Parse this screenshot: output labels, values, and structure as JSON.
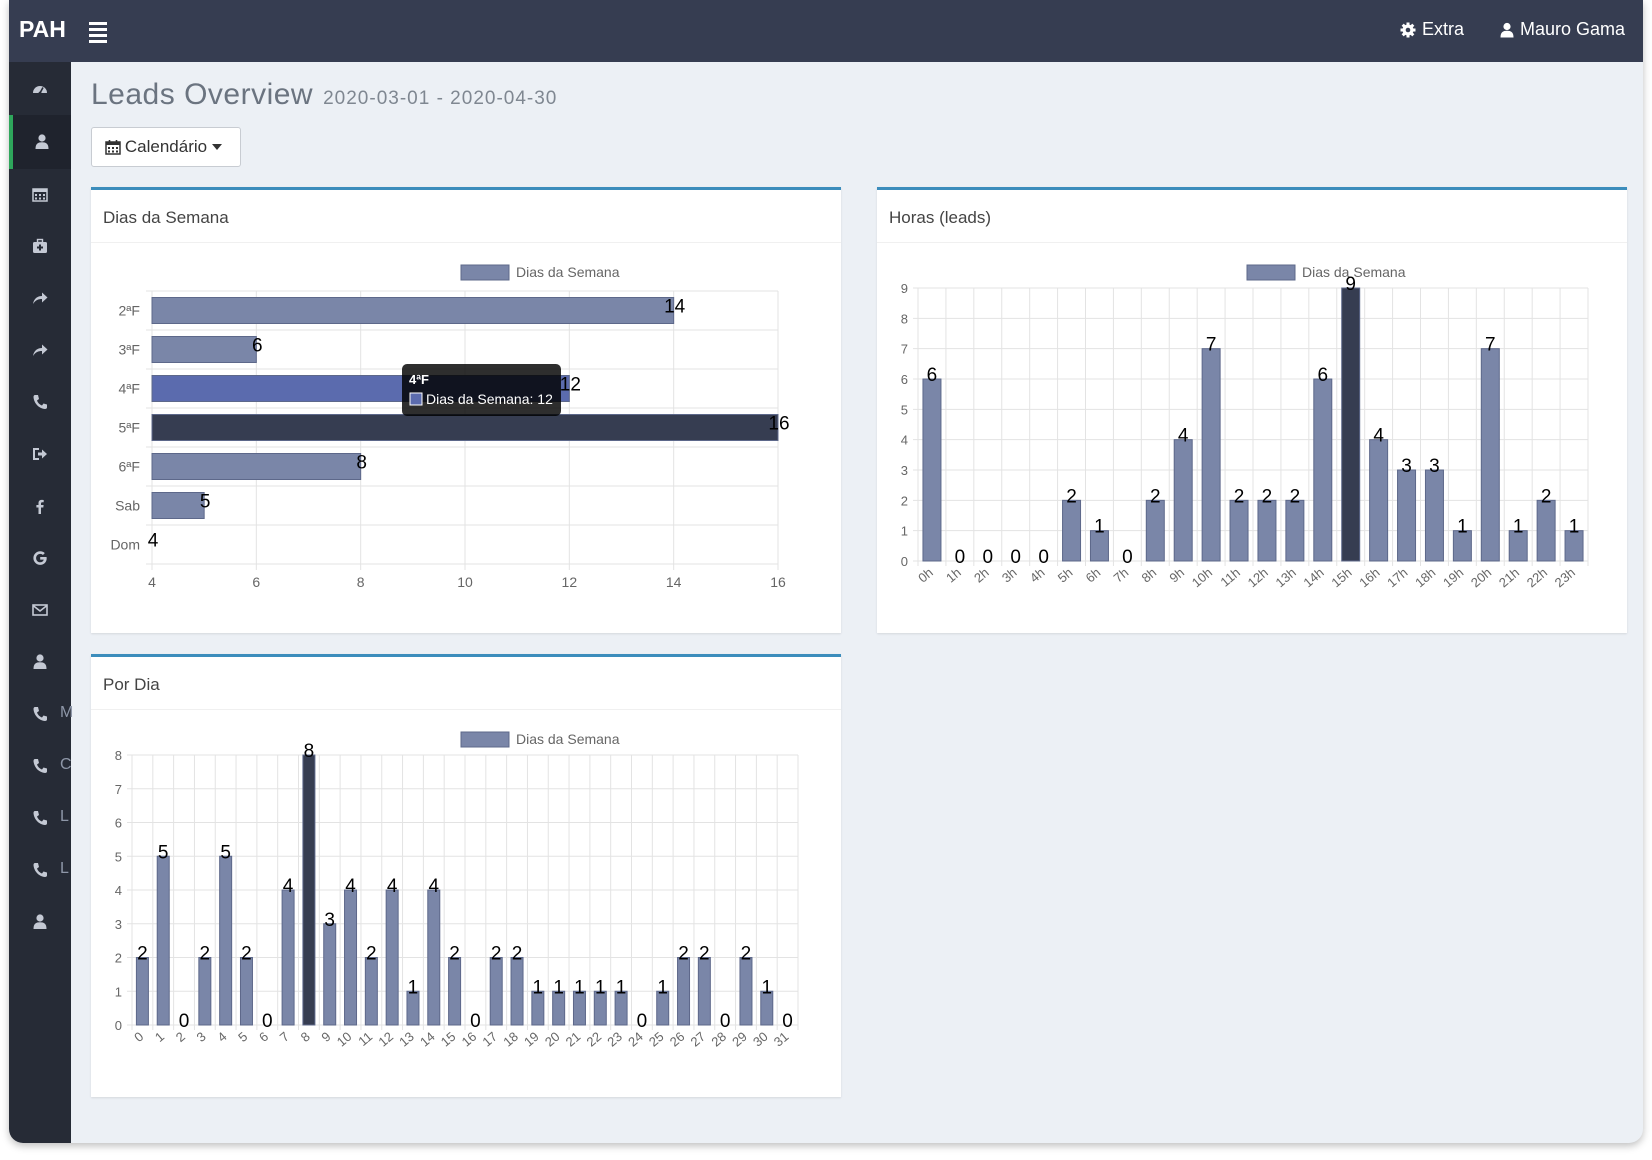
{
  "app": {
    "logo": "PAH"
  },
  "topbar": {
    "extra_label": "Extra",
    "user_name": "Mauro Gama"
  },
  "sidebar": {
    "items": [
      {
        "icon": "dashboard-icon",
        "label": ""
      },
      {
        "icon": "user-icon",
        "label": "",
        "active": true
      },
      {
        "icon": "calendar-icon",
        "label": ""
      },
      {
        "icon": "medkit-icon",
        "label": ""
      },
      {
        "icon": "share-icon",
        "label": ""
      },
      {
        "icon": "share-icon",
        "label": ""
      },
      {
        "icon": "phone-icon",
        "label": ""
      },
      {
        "icon": "sign-out-icon",
        "label": ""
      },
      {
        "icon": "facebook-icon",
        "label": ""
      },
      {
        "icon": "google-icon",
        "label": ""
      },
      {
        "icon": "envelope-icon",
        "label": ""
      },
      {
        "icon": "user-icon",
        "label": ""
      },
      {
        "icon": "phone-icon",
        "label": "M"
      },
      {
        "icon": "phone-icon",
        "label": "C"
      },
      {
        "icon": "phone-icon",
        "label": "L"
      },
      {
        "icon": "phone-icon",
        "label": "L"
      },
      {
        "icon": "user-icon",
        "label": ""
      }
    ]
  },
  "page": {
    "title": "Leads Overview",
    "date_range": "2020-03-01 - 2020-04-30"
  },
  "calendar_button": {
    "label": "Calendário"
  },
  "panels": {
    "weekdays": {
      "title": "Dias da Semana"
    },
    "hours": {
      "title": "Horas (leads)"
    },
    "days": {
      "title": "Por Dia"
    }
  },
  "tooltip": {
    "title": "4ªF",
    "text": "Dias da Semana: 12"
  },
  "colors": {
    "bar": "#7a86a8",
    "highlight": "#363d51",
    "hover": "#5b6bae",
    "accent": "#3c8dbc"
  },
  "chart_data": [
    {
      "type": "bar",
      "orientation": "horizontal",
      "title": "Dias da Semana",
      "legend": "Dias da Semana",
      "categories": [
        "2ªF",
        "3ªF",
        "4ªF",
        "5ªF",
        "6ªF",
        "Sab",
        "Dom"
      ],
      "values": [
        14,
        6,
        12,
        16,
        8,
        5,
        4
      ],
      "xlim": [
        4,
        16
      ],
      "xticks": [
        4,
        6,
        8,
        10,
        12,
        14,
        16
      ],
      "highlight_index": 3,
      "hover_index": 2
    },
    {
      "type": "bar",
      "title": "Horas (leads)",
      "legend": "Dias da Semana",
      "categories": [
        "0h",
        "1h",
        "2h",
        "3h",
        "4h",
        "5h",
        "6h",
        "7h",
        "8h",
        "9h",
        "10h",
        "11h",
        "12h",
        "13h",
        "14h",
        "15h",
        "16h",
        "17h",
        "18h",
        "19h",
        "20h",
        "21h",
        "22h",
        "23h"
      ],
      "values": [
        6,
        0,
        0,
        0,
        0,
        2,
        1,
        0,
        2,
        4,
        7,
        2,
        2,
        2,
        6,
        9,
        4,
        3,
        3,
        1,
        7,
        1,
        2,
        1
      ],
      "ylim": [
        0,
        9
      ],
      "highlight_index": 15
    },
    {
      "type": "bar",
      "title": "Por Dia",
      "legend": "Dias da Semana",
      "categories": [
        "0",
        "1",
        "2",
        "3",
        "4",
        "5",
        "6",
        "7",
        "8",
        "9",
        "10",
        "11",
        "12",
        "13",
        "14",
        "15",
        "16",
        "17",
        "18",
        "19",
        "20",
        "21",
        "22",
        "23",
        "24",
        "25",
        "26",
        "27",
        "28",
        "29",
        "30",
        "31"
      ],
      "values": [
        2,
        5,
        0,
        2,
        5,
        2,
        0,
        4,
        8,
        3,
        4,
        2,
        4,
        1,
        4,
        2,
        0,
        2,
        2,
        1,
        1,
        1,
        1,
        1,
        0,
        1,
        2,
        2,
        0,
        2,
        1,
        0
      ],
      "ylim": [
        0,
        8
      ],
      "highlight_index": 8
    }
  ]
}
